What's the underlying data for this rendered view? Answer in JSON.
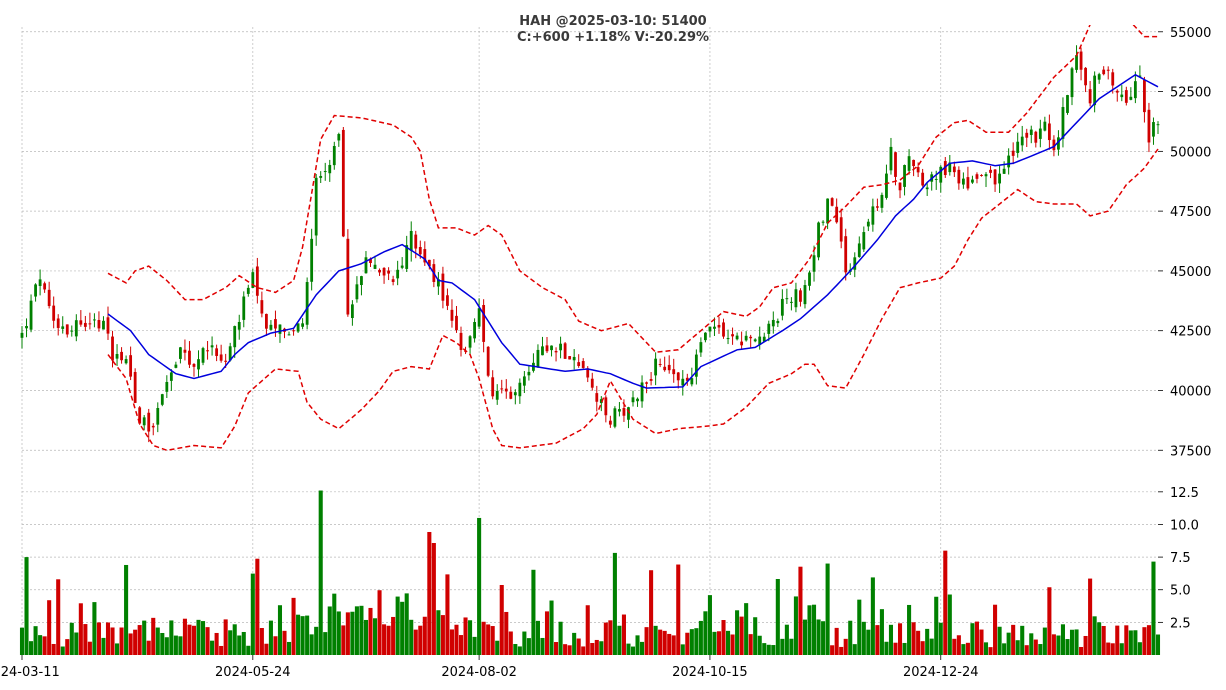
{
  "chart_data": {
    "type": "candlestick",
    "title_line1": "HAH @2025-03-10: 51400",
    "title_line2": "C:+600 +1.18% V:-20.29%",
    "price_axis": {
      "ticks": [
        37500,
        40000,
        42500,
        45000,
        47500,
        50000,
        52500,
        55000
      ],
      "ylim": [
        36800,
        55200
      ],
      "position": "right"
    },
    "volume_axis": {
      "ticks": [
        2.5,
        5.0,
        7.5,
        10.0,
        12.5
      ],
      "ylim": [
        0,
        13.1
      ],
      "position": "right"
    },
    "x_ticks": [
      {
        "label": "2024-03-11",
        "index": 0
      },
      {
        "label": "2024-05-24",
        "index": 51
      },
      {
        "label": "2024-08-02",
        "index": 101
      },
      {
        "label": "2024-10-15",
        "index": 152
      },
      {
        "label": "2024-12-24",
        "index": 203
      }
    ],
    "n_sessions": 252,
    "bullish_color": "#008000",
    "bearish_color": "#d00000",
    "ma_color": "#0000dd",
    "band_color": "#e00000",
    "grid": true,
    "ma20_anchors": [
      [
        19,
        43200
      ],
      [
        24,
        42500
      ],
      [
        28,
        41500
      ],
      [
        34,
        40700
      ],
      [
        38,
        40500
      ],
      [
        44,
        40800
      ],
      [
        47,
        41500
      ],
      [
        50,
        42000
      ],
      [
        55,
        42400
      ],
      [
        60,
        42600
      ],
      [
        65,
        44000
      ],
      [
        70,
        45000
      ],
      [
        75,
        45300
      ],
      [
        80,
        45800
      ],
      [
        84,
        46100
      ],
      [
        89,
        45500
      ],
      [
        92,
        44600
      ],
      [
        95,
        44500
      ],
      [
        100,
        43800
      ],
      [
        106,
        42000
      ],
      [
        110,
        41100
      ],
      [
        120,
        40800
      ],
      [
        125,
        40900
      ],
      [
        130,
        40700
      ],
      [
        135,
        40300
      ],
      [
        138,
        40100
      ],
      [
        146,
        40150
      ],
      [
        150,
        41000
      ],
      [
        158,
        41700
      ],
      [
        162,
        41800
      ],
      [
        168,
        42500
      ],
      [
        172,
        43000
      ],
      [
        178,
        44000
      ],
      [
        183,
        45000
      ],
      [
        189,
        46300
      ],
      [
        193,
        47300
      ],
      [
        197,
        48000
      ],
      [
        200,
        48700
      ],
      [
        205,
        49500
      ],
      [
        210,
        49600
      ],
      [
        215,
        49400
      ],
      [
        219,
        49500
      ],
      [
        223,
        49800
      ],
      [
        228,
        50200
      ],
      [
        232,
        51000
      ],
      [
        238,
        52200
      ],
      [
        242,
        52700
      ],
      [
        246,
        53200
      ],
      [
        249,
        52900
      ],
      [
        251,
        52700
      ]
    ],
    "upper_band_anchors": [
      [
        19,
        44900
      ],
      [
        23,
        44500
      ],
      [
        25,
        45000
      ],
      [
        28,
        45200
      ],
      [
        32,
        44600
      ],
      [
        36,
        43800
      ],
      [
        40,
        43800
      ],
      [
        45,
        44300
      ],
      [
        48,
        44800
      ],
      [
        52,
        44300
      ],
      [
        56,
        44100
      ],
      [
        60,
        44600
      ],
      [
        62,
        46000
      ],
      [
        66,
        50500
      ],
      [
        69,
        51500
      ],
      [
        75,
        51400
      ],
      [
        82,
        51100
      ],
      [
        86,
        50600
      ],
      [
        88,
        50000
      ],
      [
        90,
        48000
      ],
      [
        92,
        46800
      ],
      [
        96,
        46800
      ],
      [
        100,
        46500
      ],
      [
        103,
        46900
      ],
      [
        106,
        46500
      ],
      [
        110,
        45000
      ],
      [
        115,
        44300
      ],
      [
        120,
        43800
      ],
      [
        123,
        42900
      ],
      [
        128,
        42500
      ],
      [
        134,
        42800
      ],
      [
        140,
        41600
      ],
      [
        145,
        41700
      ],
      [
        150,
        42500
      ],
      [
        155,
        43300
      ],
      [
        160,
        43100
      ],
      [
        163,
        43500
      ],
      [
        166,
        44300
      ],
      [
        170,
        44500
      ],
      [
        174,
        45500
      ],
      [
        178,
        47000
      ],
      [
        182,
        47700
      ],
      [
        186,
        48500
      ],
      [
        190,
        48600
      ],
      [
        194,
        48800
      ],
      [
        198,
        49400
      ],
      [
        202,
        50600
      ],
      [
        206,
        51200
      ],
      [
        209,
        51300
      ],
      [
        213,
        50800
      ],
      [
        218,
        50800
      ],
      [
        222,
        51600
      ],
      [
        228,
        53100
      ],
      [
        233,
        54000
      ],
      [
        236,
        55300
      ],
      [
        240,
        56200
      ],
      [
        244,
        55600
      ],
      [
        248,
        54800
      ],
      [
        251,
        54800
      ]
    ],
    "lower_band_anchors": [
      [
        19,
        41500
      ],
      [
        23,
        40500
      ],
      [
        26,
        38600
      ],
      [
        29,
        37700
      ],
      [
        32,
        37500
      ],
      [
        38,
        37700
      ],
      [
        44,
        37600
      ],
      [
        47,
        38500
      ],
      [
        50,
        39900
      ],
      [
        53,
        40400
      ],
      [
        56,
        40900
      ],
      [
        61,
        40800
      ],
      [
        63,
        39500
      ],
      [
        66,
        38800
      ],
      [
        70,
        38400
      ],
      [
        75,
        39200
      ],
      [
        79,
        40000
      ],
      [
        82,
        40800
      ],
      [
        86,
        41000
      ],
      [
        90,
        40900
      ],
      [
        93,
        42300
      ],
      [
        96,
        42000
      ],
      [
        99,
        41500
      ],
      [
        101,
        40500
      ],
      [
        104,
        38400
      ],
      [
        106,
        37700
      ],
      [
        110,
        37600
      ],
      [
        118,
        37800
      ],
      [
        124,
        38400
      ],
      [
        127,
        39000
      ],
      [
        130,
        40400
      ],
      [
        135,
        38800
      ],
      [
        140,
        38200
      ],
      [
        145,
        38400
      ],
      [
        151,
        38500
      ],
      [
        155,
        38600
      ],
      [
        160,
        39300
      ],
      [
        165,
        40300
      ],
      [
        170,
        40700
      ],
      [
        173,
        41100
      ],
      [
        175,
        41100
      ],
      [
        178,
        40200
      ],
      [
        182,
        40100
      ],
      [
        186,
        41500
      ],
      [
        190,
        43000
      ],
      [
        194,
        44300
      ],
      [
        198,
        44500
      ],
      [
        203,
        44700
      ],
      [
        206,
        45200
      ],
      [
        209,
        46300
      ],
      [
        212,
        47200
      ],
      [
        216,
        47800
      ],
      [
        220,
        48400
      ],
      [
        224,
        47900
      ],
      [
        228,
        47800
      ],
      [
        233,
        47800
      ],
      [
        236,
        47300
      ],
      [
        240,
        47500
      ],
      [
        244,
        48600
      ],
      [
        248,
        49300
      ],
      [
        251,
        50100
      ]
    ],
    "close_anchors": [
      [
        0,
        42300
      ],
      [
        4,
        44800
      ],
      [
        6,
        43200
      ],
      [
        10,
        42600
      ],
      [
        14,
        43000
      ],
      [
        18,
        42700
      ],
      [
        20,
        41600
      ],
      [
        23,
        41400
      ],
      [
        26,
        38900
      ],
      [
        29,
        38400
      ],
      [
        31,
        40100
      ],
      [
        35,
        41500
      ],
      [
        38,
        40900
      ],
      [
        42,
        42100
      ],
      [
        45,
        41000
      ],
      [
        47,
        42500
      ],
      [
        51,
        44700
      ],
      [
        54,
        42300
      ],
      [
        57,
        42600
      ],
      [
        62,
        42700
      ],
      [
        65,
        48600
      ],
      [
        68,
        49400
      ],
      [
        70,
        50400
      ],
      [
        72,
        43000
      ],
      [
        76,
        45600
      ],
      [
        82,
        44500
      ],
      [
        86,
        46500
      ],
      [
        90,
        45200
      ],
      [
        93,
        43900
      ],
      [
        96,
        42400
      ],
      [
        98,
        41600
      ],
      [
        101,
        43200
      ],
      [
        104,
        39600
      ],
      [
        107,
        39800
      ],
      [
        111,
        40600
      ],
      [
        115,
        42000
      ],
      [
        119,
        41800
      ],
      [
        123,
        41200
      ],
      [
        126,
        39800
      ],
      [
        130,
        38800
      ],
      [
        135,
        39600
      ],
      [
        140,
        41000
      ],
      [
        145,
        40500
      ],
      [
        147,
        40300
      ],
      [
        152,
        43000
      ],
      [
        158,
        42100
      ],
      [
        163,
        42000
      ],
      [
        166,
        42700
      ],
      [
        169,
        43900
      ],
      [
        172,
        44000
      ],
      [
        174,
        45000
      ],
      [
        176,
        46900
      ],
      [
        178,
        47800
      ],
      [
        180,
        47300
      ],
      [
        182,
        45000
      ],
      [
        185,
        46100
      ],
      [
        188,
        47400
      ],
      [
        190,
        48000
      ],
      [
        192,
        49900
      ],
      [
        194,
        48600
      ],
      [
        196,
        49700
      ],
      [
        200,
        48500
      ],
      [
        203,
        49400
      ],
      [
        206,
        49100
      ],
      [
        209,
        48600
      ],
      [
        212,
        49300
      ],
      [
        215,
        48800
      ],
      [
        220,
        50200
      ],
      [
        223,
        50600
      ],
      [
        226,
        50900
      ],
      [
        228,
        49900
      ],
      [
        230,
        51600
      ],
      [
        233,
        54200
      ],
      [
        236,
        52200
      ],
      [
        238,
        53500
      ],
      [
        241,
        52800
      ],
      [
        244,
        52300
      ],
      [
        247,
        53200
      ],
      [
        249,
        50600
      ],
      [
        251,
        51400
      ]
    ]
  }
}
